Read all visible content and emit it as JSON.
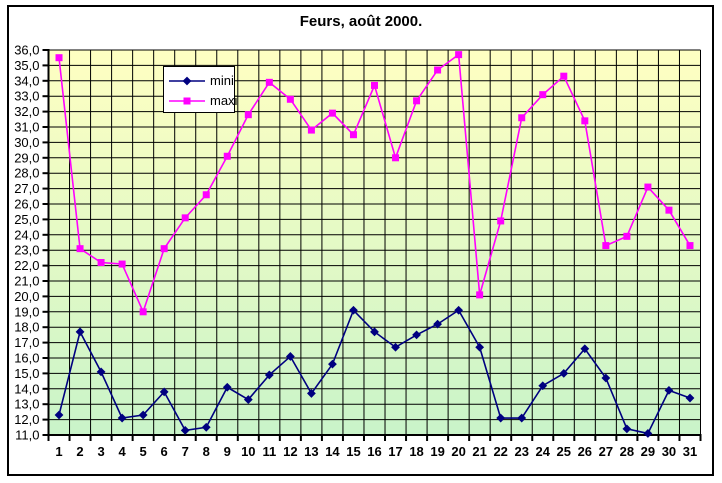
{
  "chart_data": {
    "type": "line",
    "title": "Feurs, août 2000.",
    "x_categories": [
      1,
      2,
      3,
      4,
      5,
      6,
      7,
      8,
      9,
      10,
      11,
      12,
      13,
      14,
      15,
      16,
      17,
      18,
      19,
      20,
      21,
      22,
      23,
      24,
      25,
      26,
      27,
      28,
      29,
      30,
      31
    ],
    "series": [
      {
        "name": "mini",
        "color": "#000080",
        "marker": "diamond",
        "values": [
          12.3,
          17.7,
          15.1,
          12.1,
          12.3,
          13.8,
          11.3,
          11.5,
          14.1,
          13.3,
          14.9,
          16.1,
          13.7,
          15.6,
          19.1,
          17.7,
          16.7,
          17.5,
          18.2,
          19.1,
          16.7,
          12.1,
          12.1,
          14.2,
          15.0,
          16.6,
          14.7,
          11.4,
          11.1,
          13.9,
          13.4
        ]
      },
      {
        "name": "maxi",
        "color": "#FF00FF",
        "marker": "square",
        "values": [
          35.5,
          23.1,
          22.2,
          22.1,
          19.0,
          23.1,
          25.1,
          26.6,
          29.1,
          31.8,
          33.9,
          32.8,
          30.8,
          31.9,
          30.5,
          33.7,
          29.0,
          32.7,
          34.7,
          35.7,
          20.1,
          24.9,
          31.6,
          33.1,
          34.3,
          31.4,
          23.3,
          23.9,
          27.1,
          25.6,
          23.3
        ]
      }
    ],
    "ylim": [
      11.0,
      36.0
    ],
    "ytick_step": 1.0,
    "y_tick_labels": [
      "36,0",
      "35,0",
      "34,0",
      "33,0",
      "32,0",
      "31,0",
      "30,0",
      "29,0",
      "28,0",
      "27,0",
      "26,0",
      "25,0",
      "24,0",
      "23,0",
      "22,0",
      "21,0",
      "20,0",
      "19,0",
      "17,0",
      "16,0",
      "15,0",
      "14,0",
      "13,0",
      "12,0",
      "11,0"
    ],
    "xlabel": "",
    "ylabel": "",
    "grid": "both",
    "legend_position": "inside-top-left",
    "plot_background": {
      "top_color": "#FFFFC2",
      "bottom_color": "#C9F4C9"
    },
    "gridline_color": "#000000",
    "axis_color": "#000000"
  }
}
